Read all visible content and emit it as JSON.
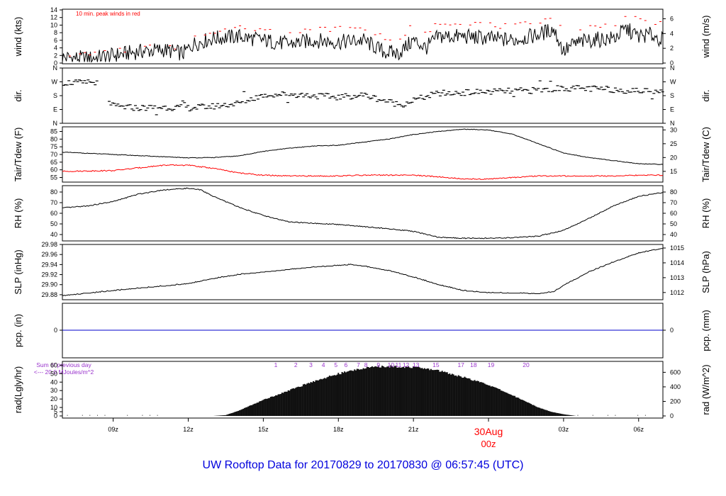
{
  "footer_title": "UW Rooftop Data for 20170829  to  20170830 @ 06:57:45  (UTC)",
  "colors": {
    "line": "#000000",
    "peak": "#ff0000",
    "dewpoint": "#ff0000",
    "precip": "#0000cc",
    "annotation": "#9933cc",
    "date_label": "#ff0000",
    "title": "#0000dd"
  },
  "x_axis": {
    "ticks": [
      "09z",
      "12z",
      "15z",
      "18z",
      "21z",
      "00z",
      "03z",
      "06z"
    ],
    "tick_hours": [
      9,
      12,
      15,
      18,
      21,
      24,
      27,
      30
    ],
    "range_hours": [
      6.97,
      30.97
    ],
    "date_marker": "30Aug",
    "date_marker_sub": "00z"
  },
  "chart_data": [
    {
      "type": "line",
      "panel": "wind",
      "ylabel_left": "wind (kts)",
      "ylabel_right": "wind (m/s)",
      "annotation": "10 min. peak winds in red",
      "ylim": [
        0,
        14
      ],
      "yticks_left": [
        0,
        2,
        4,
        6,
        8,
        10,
        12,
        14
      ],
      "yticks_right": [
        0,
        2,
        4,
        6
      ],
      "right_scale": 0.5144,
      "x": [
        7.0,
        8.0,
        9.0,
        10.0,
        11.0,
        11.8,
        12.2,
        13.0,
        14.0,
        15.0,
        16.0,
        17.0,
        18.0,
        19.0,
        19.8,
        20.4,
        21.0,
        21.5,
        22.0,
        23.0,
        24.0,
        25.0,
        26.0,
        26.6,
        27.0,
        27.4,
        28.0,
        29.0,
        29.5,
        30.0,
        30.5,
        30.97
      ],
      "series": [
        {
          "name": "wind",
          "values": [
            1.5,
            1.2,
            2.0,
            3.0,
            3.5,
            2.5,
            5.0,
            6.5,
            7.0,
            6.0,
            5.0,
            6.0,
            5.5,
            6.0,
            3.0,
            2.5,
            6.0,
            4.0,
            7.0,
            7.0,
            6.5,
            6.0,
            7.5,
            9.0,
            3.0,
            5.0,
            6.0,
            6.5,
            9.0,
            7.0,
            7.5,
            6.0
          ]
        },
        {
          "name": "10 min. peak winds",
          "values": [
            2.5,
            2.3,
            3.0,
            4.0,
            4.5,
            4.0,
            6.5,
            8.5,
            9.5,
            9.0,
            8.5,
            9.0,
            9.0,
            9.0,
            7.0,
            6.0,
            10.0,
            8.0,
            10.5,
            11.0,
            10.0,
            9.5,
            11.0,
            12.0,
            8.0,
            9.0,
            9.5,
            10.0,
            13.0,
            11.0,
            11.0,
            10.0
          ]
        }
      ]
    },
    {
      "type": "scatter",
      "panel": "direction",
      "ylabel_left": "dir.",
      "ylabel_right": "dir.",
      "yticks_left": [
        "N",
        "E",
        "S",
        "W",
        "N"
      ],
      "yticks_right": [
        "N",
        "E",
        "S",
        "W",
        "N"
      ],
      "ylim_deg": [
        0,
        360
      ],
      "x": [
        7.0,
        7.5,
        8.0,
        8.3,
        8.6,
        9.0,
        10.0,
        11.0,
        12.0,
        13.0,
        14.0,
        15.0,
        16.0,
        17.0,
        18.0,
        19.0,
        19.8,
        20.5,
        21.0,
        22.0,
        23.0,
        24.0,
        25.0,
        26.0,
        27.0,
        28.0,
        29.0,
        30.0,
        30.97
      ],
      "values": [
        265,
        265,
        260,
        270,
        210,
        110,
        100,
        105,
        100,
        110,
        130,
        185,
        190,
        180,
        170,
        185,
        150,
        120,
        150,
        195,
        200,
        205,
        210,
        215,
        230,
        225,
        220,
        210,
        215
      ]
    },
    {
      "type": "line",
      "panel": "temperature",
      "ylabel_left": "Tair/Tdew (F)",
      "ylabel_right": "Tair/Tdew (C)",
      "ylim": [
        52,
        88
      ],
      "yticks_left": [
        55,
        60,
        65,
        70,
        75,
        80,
        85
      ],
      "yticks_right": [
        15,
        20,
        25,
        30
      ],
      "x": [
        7.0,
        9.0,
        11.0,
        12.0,
        13.0,
        14.0,
        15.0,
        16.0,
        17.0,
        18.0,
        19.0,
        20.0,
        21.0,
        22.0,
        23.0,
        24.0,
        25.0,
        26.0,
        27.0,
        28.0,
        29.0,
        30.0,
        30.97
      ],
      "series": [
        {
          "name": "Tair",
          "values": [
            71.5,
            70,
            68.5,
            67.8,
            68,
            69,
            72,
            74,
            75.5,
            76,
            78,
            80,
            83,
            85,
            86.5,
            86,
            83,
            77,
            71,
            68,
            66,
            64,
            63.5
          ]
        },
        {
          "name": "Tdew",
          "values": [
            59,
            59.5,
            63,
            63,
            61,
            58,
            56.5,
            56,
            56,
            56,
            56.5,
            56.5,
            56.5,
            55.5,
            54,
            54,
            55,
            56,
            56,
            56,
            56,
            56.5,
            56.5
          ]
        }
      ]
    },
    {
      "type": "line",
      "panel": "relative_humidity",
      "ylabel_left": "RH (%)",
      "ylabel_right": "RH (%)",
      "ylim": [
        34,
        86
      ],
      "yticks_left": [
        40,
        50,
        60,
        70,
        80
      ],
      "yticks_right": [
        40,
        50,
        60,
        70,
        80
      ],
      "x": [
        7.0,
        8.0,
        9.0,
        10.0,
        11.0,
        12.0,
        12.5,
        13.0,
        14.0,
        15.0,
        16.0,
        17.0,
        18.0,
        19.0,
        20.0,
        21.0,
        22.0,
        23.0,
        24.0,
        25.0,
        26.0,
        27.0,
        28.0,
        29.0,
        30.0,
        30.97
      ],
      "values": [
        65,
        67,
        71,
        78,
        82,
        83.5,
        82,
        76,
        66,
        58,
        52,
        50.5,
        49.5,
        47.5,
        45.5,
        43,
        37.5,
        36.5,
        36.5,
        37,
        38.5,
        44,
        55,
        67,
        76,
        79.5
      ]
    },
    {
      "type": "line",
      "panel": "pressure",
      "ylabel_left": "SLP (inHg)",
      "ylabel_right": "SLP (hPa)",
      "ylim": [
        29.87,
        29.98
      ],
      "yticks_left": [
        29.88,
        29.9,
        29.92,
        29.94,
        29.96,
        29.98
      ],
      "yticks_right": [
        1012,
        1013,
        1014,
        1015
      ],
      "x": [
        7.0,
        8.0,
        9.0,
        10.0,
        11.0,
        12.0,
        13.0,
        14.0,
        15.0,
        16.0,
        17.0,
        18.0,
        18.5,
        19.0,
        20.0,
        21.0,
        22.0,
        23.0,
        24.0,
        25.0,
        26.0,
        26.6,
        27.0,
        28.0,
        29.0,
        30.0,
        30.97
      ],
      "values": [
        29.878,
        29.883,
        29.888,
        29.893,
        29.897,
        29.902,
        29.912,
        29.92,
        29.925,
        29.93,
        29.935,
        29.938,
        29.94,
        29.937,
        29.928,
        29.915,
        29.9,
        29.888,
        29.884,
        29.883,
        29.882,
        29.886,
        29.898,
        29.925,
        29.945,
        29.963,
        29.972
      ]
    },
    {
      "type": "line",
      "panel": "precipitation",
      "ylabel_left": "pcp. (in)",
      "ylabel_right": "pcp. (mm)",
      "yticks_left": [
        0
      ],
      "yticks_right": [
        0
      ],
      "x": [
        6.97,
        30.97
      ],
      "values": [
        0,
        0
      ]
    },
    {
      "type": "area",
      "panel": "radiation",
      "ylabel_left": "rad(Lgly/hr)",
      "ylabel_right": "rad (W/m^2)",
      "annotation_line1": "Sum of previous day",
      "annotation_line2": "<--- 20.0 MJoules/m^2",
      "ylim": [
        0,
        62
      ],
      "yticks_left": [
        0,
        5,
        10,
        20,
        30,
        40,
        50,
        60
      ],
      "yticks_right": [
        0,
        200,
        400,
        600
      ],
      "right_scale": 11.63,
      "hour_labels": [
        "1",
        "2",
        "3",
        "4",
        "5",
        "6",
        "7",
        "8",
        "9",
        "10",
        "11",
        "12",
        "13",
        "15",
        "17",
        "18",
        "19",
        "20"
      ],
      "hour_label_x": [
        15.5,
        16.3,
        16.9,
        17.4,
        17.9,
        18.3,
        18.8,
        19.1,
        19.6,
        20.1,
        20.4,
        20.7,
        21.1,
        21.9,
        22.9,
        23.4,
        24.1,
        25.5
      ],
      "x": [
        7.0,
        13.0,
        13.5,
        14.0,
        15.0,
        16.0,
        17.0,
        18.0,
        19.0,
        20.0,
        21.0,
        22.0,
        23.0,
        24.0,
        25.0,
        26.0,
        26.5,
        27.0,
        27.5,
        30.97
      ],
      "values": [
        0,
        0,
        1,
        6,
        19,
        30,
        41,
        50,
        57,
        59,
        58,
        54,
        46,
        37,
        24,
        10,
        5,
        2,
        0,
        0
      ]
    }
  ]
}
